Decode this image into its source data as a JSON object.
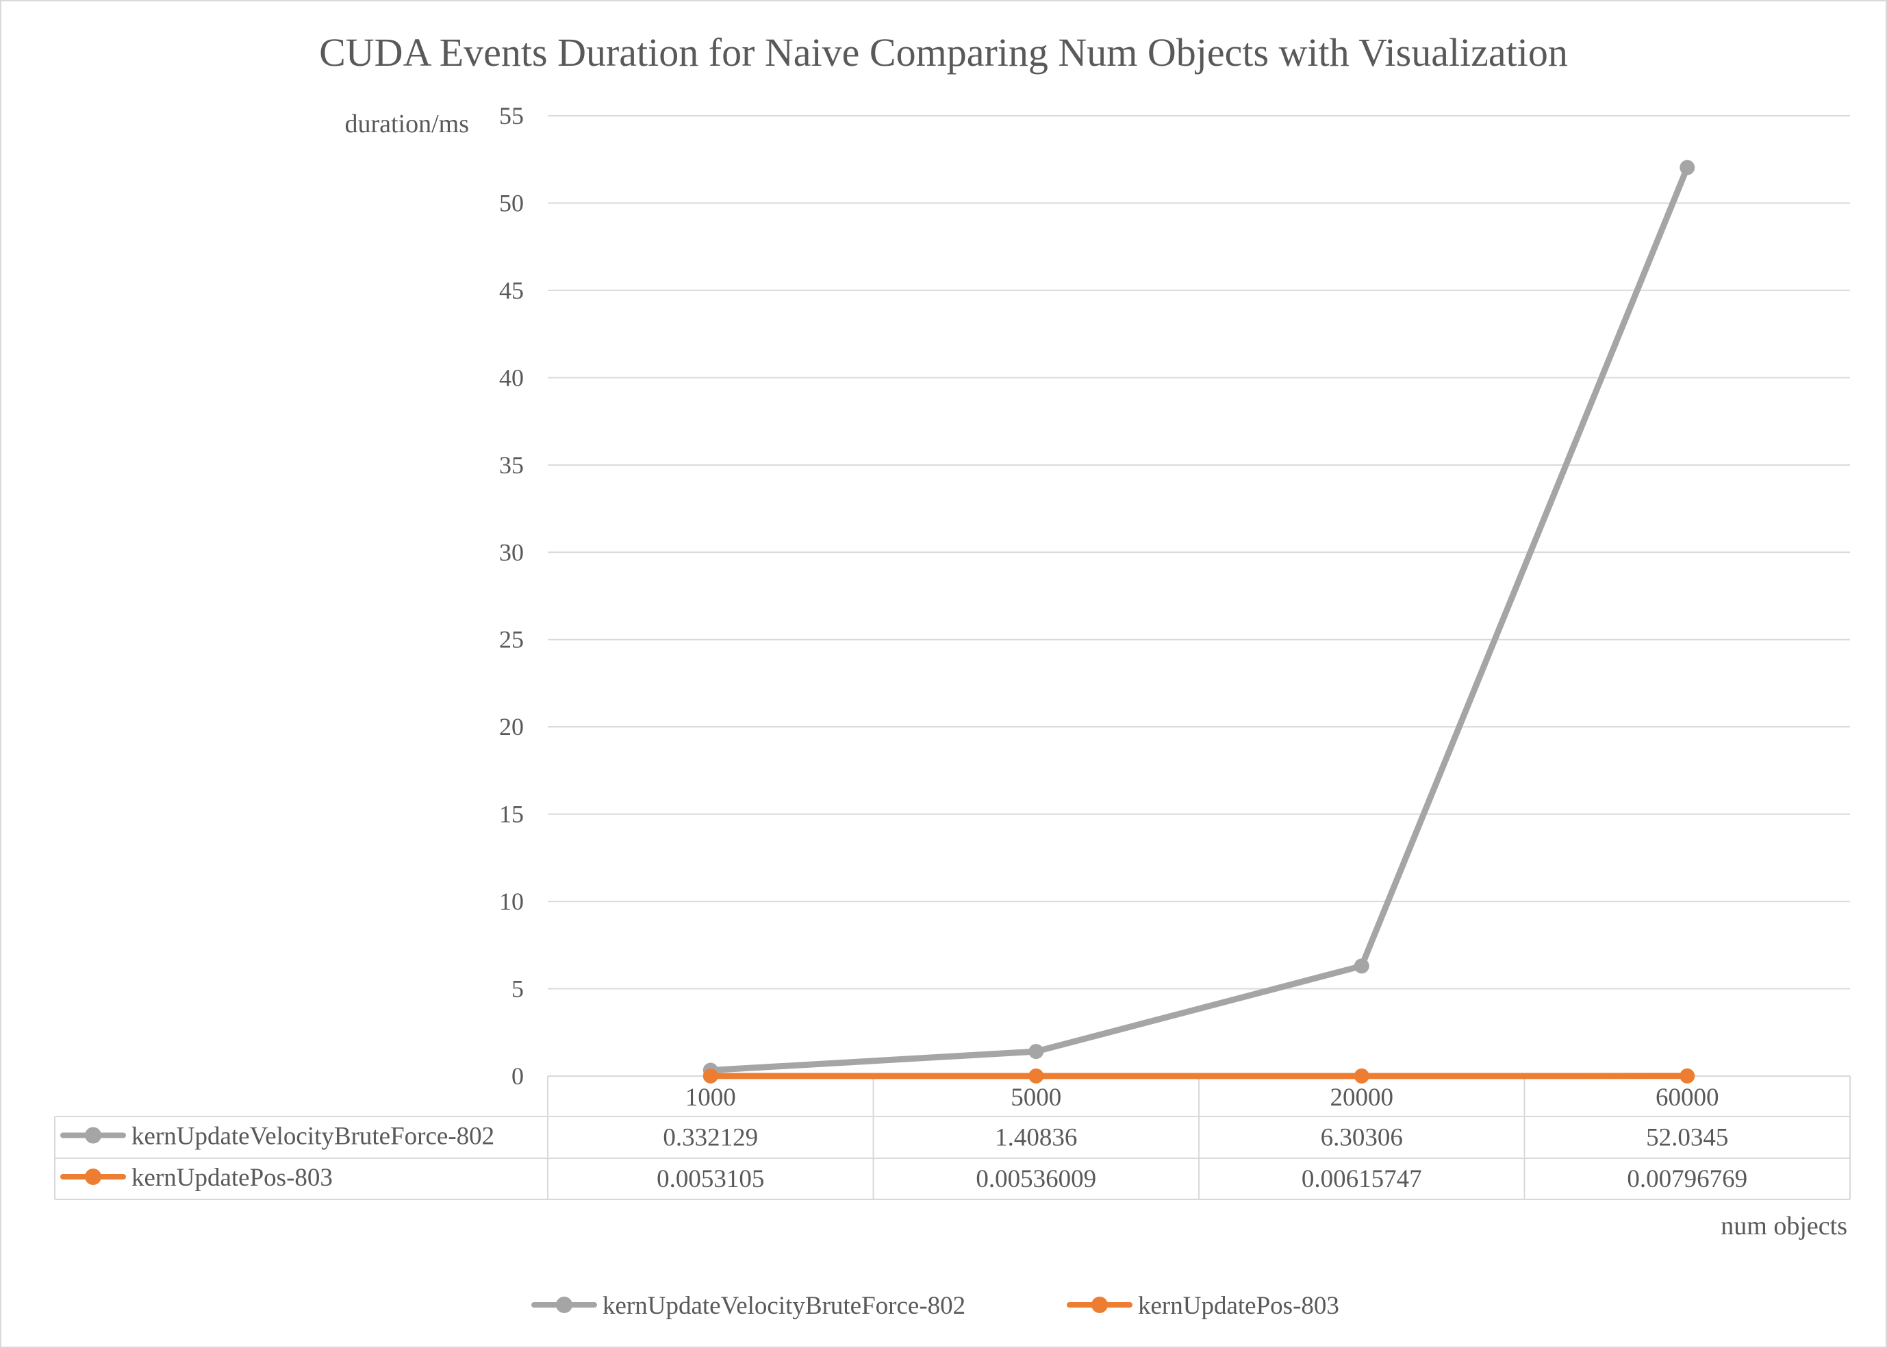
{
  "chart_data": {
    "type": "line",
    "title": "CUDA Events Duration for Naive Comparing Num Objects with Visualization",
    "xlabel": "num objects",
    "ylabel": "duration/ms",
    "categories": [
      "1000",
      "5000",
      "20000",
      "60000"
    ],
    "ylim": [
      0,
      55
    ],
    "yticks": [
      0,
      5,
      10,
      15,
      20,
      25,
      30,
      35,
      40,
      45,
      50,
      55
    ],
    "grid": true,
    "legend_position": "bottom",
    "data_table": true,
    "series": [
      {
        "name": "kernUpdateVelocityBruteForce-802",
        "color": "#a5a5a5",
        "values": [
          0.332129,
          1.40836,
          6.30306,
          52.0345
        ],
        "labels": [
          "0.332129",
          "1.40836",
          "6.30306",
          "52.0345"
        ]
      },
      {
        "name": "kernUpdatePos-803",
        "color": "#ed7d31",
        "values": [
          0.0053105,
          0.00536009,
          0.00615747,
          0.00796769
        ],
        "labels": [
          "0.0053105",
          "0.00536009",
          "0.00615747",
          "0.00796769"
        ]
      }
    ]
  }
}
